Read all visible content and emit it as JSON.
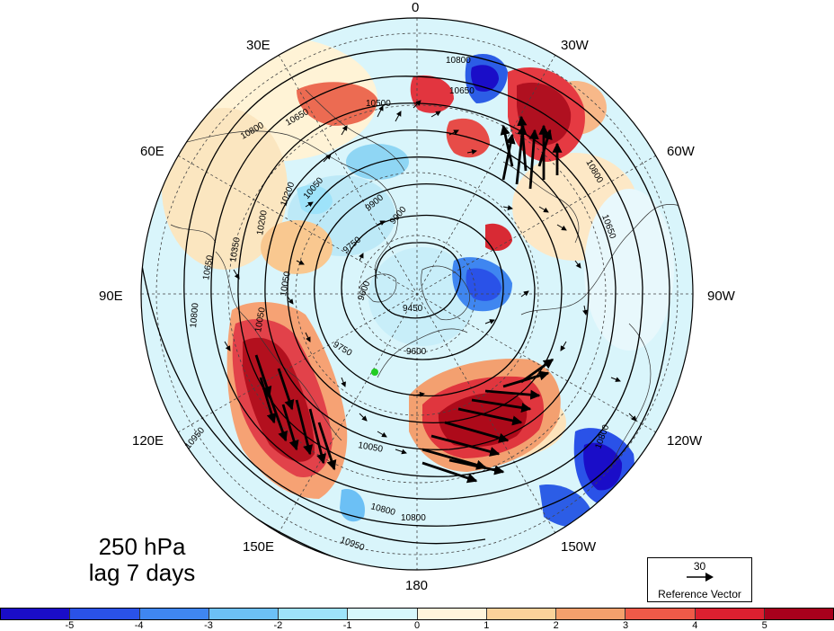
{
  "map": {
    "projection": "polar-stereographic-north",
    "title_line1": "250 hPa",
    "title_line2": "lag 7 days",
    "longitude_labels": [
      {
        "id": "lon-0",
        "text": "0"
      },
      {
        "id": "lon-30w",
        "text": "30W"
      },
      {
        "id": "lon-60w",
        "text": "60W"
      },
      {
        "id": "lon-90w",
        "text": "90W"
      },
      {
        "id": "lon-120w",
        "text": "120W"
      },
      {
        "id": "lon-150w",
        "text": "150W"
      },
      {
        "id": "lon-180",
        "text": "180"
      },
      {
        "id": "lon-150e",
        "text": "150E"
      },
      {
        "id": "lon-120e",
        "text": "120E"
      },
      {
        "id": "lon-90e",
        "text": "90E"
      },
      {
        "id": "lon-60e",
        "text": "60E"
      },
      {
        "id": "lon-30e",
        "text": "30E"
      }
    ],
    "contour_labels": [
      "10800",
      "10650",
      "10500",
      "10800",
      "10650",
      "10800",
      "10650",
      "10500",
      "10350",
      "10200",
      "10050",
      "9900",
      "9750",
      "9600",
      "9450",
      "9600",
      "9750",
      "10050",
      "10800",
      "10800",
      "10800",
      "10950",
      "10950",
      "10650",
      "10350",
      "10200",
      "10050",
      "9900",
      "10050",
      "10800"
    ],
    "marker_color": "#22cc22"
  },
  "reference_vector": {
    "value": "30",
    "label": "Reference Vector"
  },
  "colorbar": {
    "colors": [
      "#1a0dc8",
      "#2a52e8",
      "#3f86f0",
      "#6cc0f5",
      "#9ee3fa",
      "#d7f7fc",
      "#fff5dc",
      "#fbd29a",
      "#f4a06c",
      "#ef5a48",
      "#dc2030",
      "#a8001c"
    ],
    "labels": [
      "-5",
      "-4",
      "-3",
      "-2",
      "-1",
      "0",
      "1",
      "2",
      "3",
      "4",
      "5"
    ]
  }
}
